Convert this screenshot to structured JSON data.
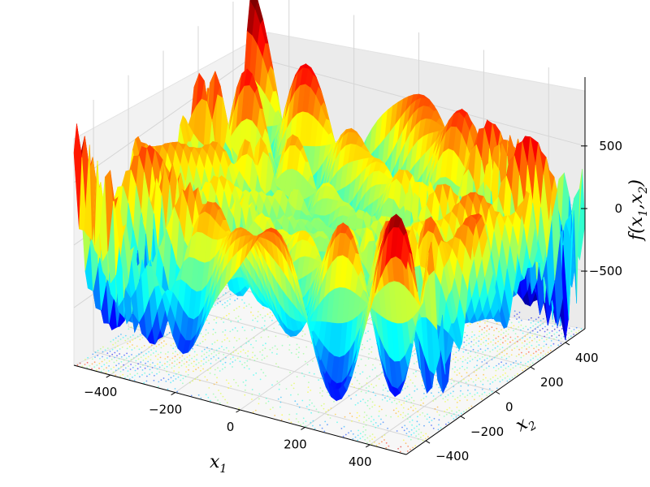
{
  "chart_data": {
    "type": "surface3d",
    "title": "",
    "function": "eggholder",
    "colormap": "jet",
    "x_range": [
      -512,
      512
    ],
    "y_range": [
      -512,
      512
    ],
    "z_range": [
      -960,
      1050
    ],
    "x_ticks": [
      -400,
      -200,
      0,
      200,
      400
    ],
    "y_ticks": [
      -400,
      -200,
      0,
      200,
      400
    ],
    "z_ticks": [
      -500,
      0,
      500
    ],
    "x_tick_labels": [
      "−400",
      "−200",
      "0",
      "200",
      "400"
    ],
    "y_tick_labels": [
      "−400",
      "−200",
      "0",
      "200",
      "400"
    ],
    "z_tick_labels": [
      "−500",
      "0",
      "500"
    ],
    "xlabel": "x",
    "xlabel_sub": "1",
    "ylabel": "x",
    "ylabel_sub": "2",
    "zlabel_f": "f(x",
    "zlabel_sub1": "1",
    "zlabel_mid": ",x",
    "zlabel_sub2": "2",
    "zlabel_end": ")",
    "contour_projection": "bottom",
    "grid": true
  }
}
